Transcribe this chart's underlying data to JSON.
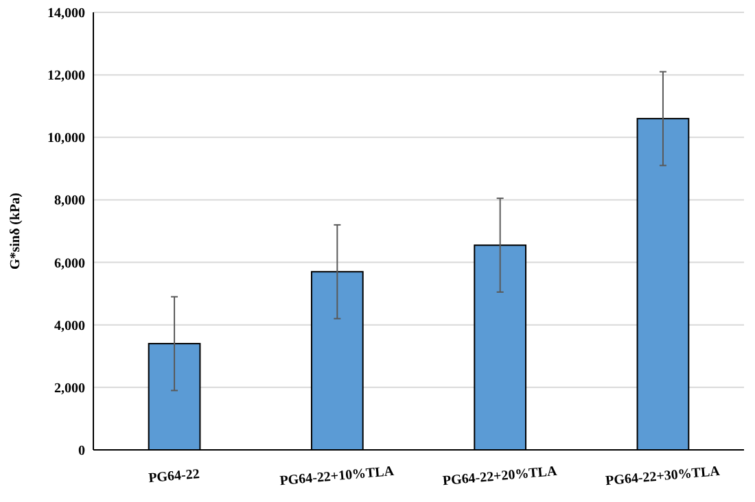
{
  "chart_data": {
    "type": "bar",
    "ylabel": "G*sinδ (kPa)",
    "categories": [
      "PG64-22",
      "PG64-22+10%TLA",
      "PG64-22+20%TLA",
      "PG64-22+30%TLA"
    ],
    "values": [
      3400,
      5700,
      6550,
      10600
    ],
    "errors": [
      1500,
      1500,
      1500,
      1500
    ],
    "color": "#5b9bd5",
    "ylim": [
      0,
      14000
    ],
    "yticks": [
      {
        "value": 0,
        "label": "0"
      },
      {
        "value": 2000,
        "label": "2,000"
      },
      {
        "value": 4000,
        "label": "4,000"
      },
      {
        "value": 6000,
        "label": "6,000"
      },
      {
        "value": 8000,
        "label": "8,000"
      },
      {
        "value": 10000,
        "label": "10,000"
      },
      {
        "value": 12000,
        "label": "12,000"
      },
      {
        "value": 14000,
        "label": "14,000"
      }
    ],
    "grid": "y"
  }
}
